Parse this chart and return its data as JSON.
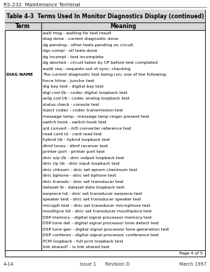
{
  "header_text": "RS-232  Maintenance Terminal",
  "table_title": "Table 4-3  Terms Used In Monitor Diagnostics Display (continued)",
  "col_headers": [
    "Term",
    "Meaning"
  ],
  "rows": [
    [
      "",
      "wait msg - waiting for test result"
    ],
    [
      "",
      "diag done - current diagnostic done"
    ],
    [
      "",
      "dg pending - other tests pending on circuit"
    ],
    [
      "",
      "dgs compl - all tests done"
    ],
    [
      "",
      "dg incompl - test incomplete"
    ],
    [
      "",
      "dg aborted - circuit taken by CP before test completed"
    ],
    [
      "",
      "audit req - requests out of sync; checking"
    ],
    [
      "DIAG NAME",
      "The current diagnostic test being run; one of the following:"
    ],
    [
      "",
      "force hilow - junctor test"
    ],
    [
      "",
      "dig bay test - digital bay test"
    ],
    [
      "",
      "digl cod l/b - codec digital loopback test"
    ],
    [
      "",
      "anlg cod l/b - codec analog loopback test"
    ],
    [
      "",
      "status check - console test"
    ],
    [
      "",
      "inject codec - codec transmission test"
    ],
    [
      "",
      "message lamp - message lamp ringer present test"
    ],
    [
      "",
      "switch hook - switch hook test"
    ],
    [
      "",
      "a/d convert - A/D converter reference test"
    ],
    [
      "",
      "read card id - card read test"
    ],
    [
      "",
      "hybrid l/b - hybrid loopback test"
    ],
    [
      "",
      "dtmf tones - dtmf receiver test"
    ],
    [
      "",
      "printer port - printer port test"
    ],
    [
      "",
      "dnic o/p l/b - dnic output loopback test"
    ],
    [
      "",
      "dnic i/p l/b - dnic input loopback test"
    ],
    [
      "",
      "dnic chksum - dnic set eprom checksum test"
    ],
    [
      "",
      "dnic bphone - dnic set bphone test"
    ],
    [
      "",
      "dnic transdu - dnic set transducer test"
    ],
    [
      "",
      "dataset lb - dataset data loopback test"
    ],
    [
      "",
      "earpiece tst - dnic set transducer earpiece test"
    ],
    [
      "",
      "speaker test - dnic set transducer speaker test"
    ],
    [
      "",
      "micrpph test - dnic set transducer microphone test"
    ],
    [
      "",
      "mouthpce tst - dnic set transducer mouthpiece test"
    ],
    [
      "",
      "DSP memory - digital signal processor memory test"
    ],
    [
      "",
      "DSP tone det - digital signal processor tone detect test"
    ],
    [
      "",
      "DSP tone gen - digital signal processor tone generation test"
    ],
    [
      "",
      "DSP conferen - digital signal processor conference test"
    ],
    [
      "",
      "PCM loopback - full pcm loopback test"
    ],
    [
      "",
      "link shared? - is link shared test"
    ]
  ],
  "footer_right": "Page 4 of 5",
  "page_footer_left": "4-14",
  "page_footer_center": "Issue 1      Revision D",
  "page_footer_right": "March 1997",
  "bg_color": "#ffffff",
  "table_bg": "#ffffff",
  "header_bg": "#d8d8d8",
  "title_fontsize": 5.5,
  "body_fontsize": 4.3,
  "col_header_fontsize": 5.5
}
